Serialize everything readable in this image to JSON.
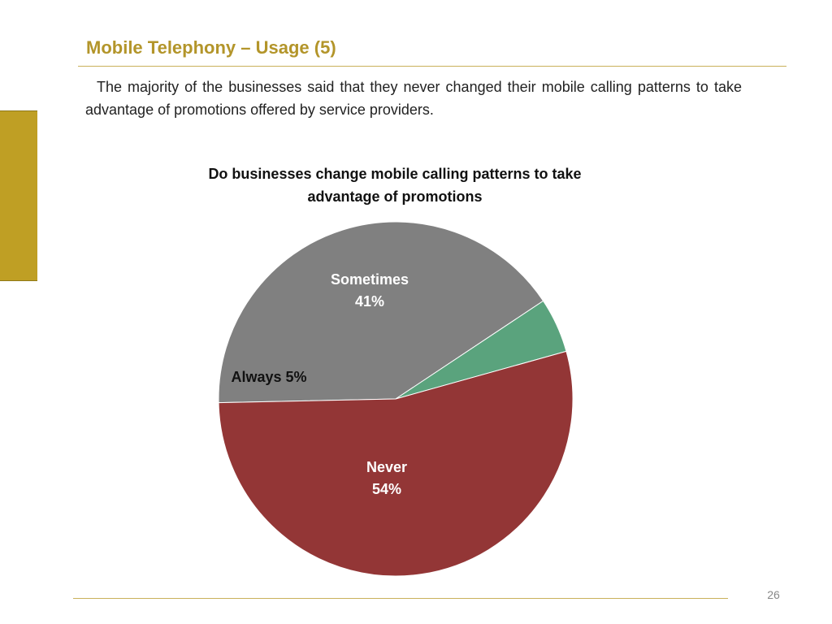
{
  "slide": {
    "title": "Mobile Telephony – Usage (5)",
    "body": "The majority of the businesses said that they never changed their mobile calling patterns to take advantage of promotions offered by service providers.",
    "page_number": "26",
    "accent_color": "#bf9f24"
  },
  "chart_data": {
    "type": "pie",
    "title": "Do businesses change mobile calling patterns to take advantage of promotions",
    "slices": [
      {
        "name": "Sometimes",
        "value": 41,
        "label": "41%",
        "color": "#808080",
        "label_color": "#ffffff"
      },
      {
        "name": "Always",
        "value": 5,
        "label": "5%",
        "color": "#5aa37d",
        "label_color": "#111111"
      },
      {
        "name": "Never",
        "value": 54,
        "label": "54%",
        "color": "#933636",
        "label_color": "#ffffff"
      }
    ],
    "legend": "none"
  }
}
